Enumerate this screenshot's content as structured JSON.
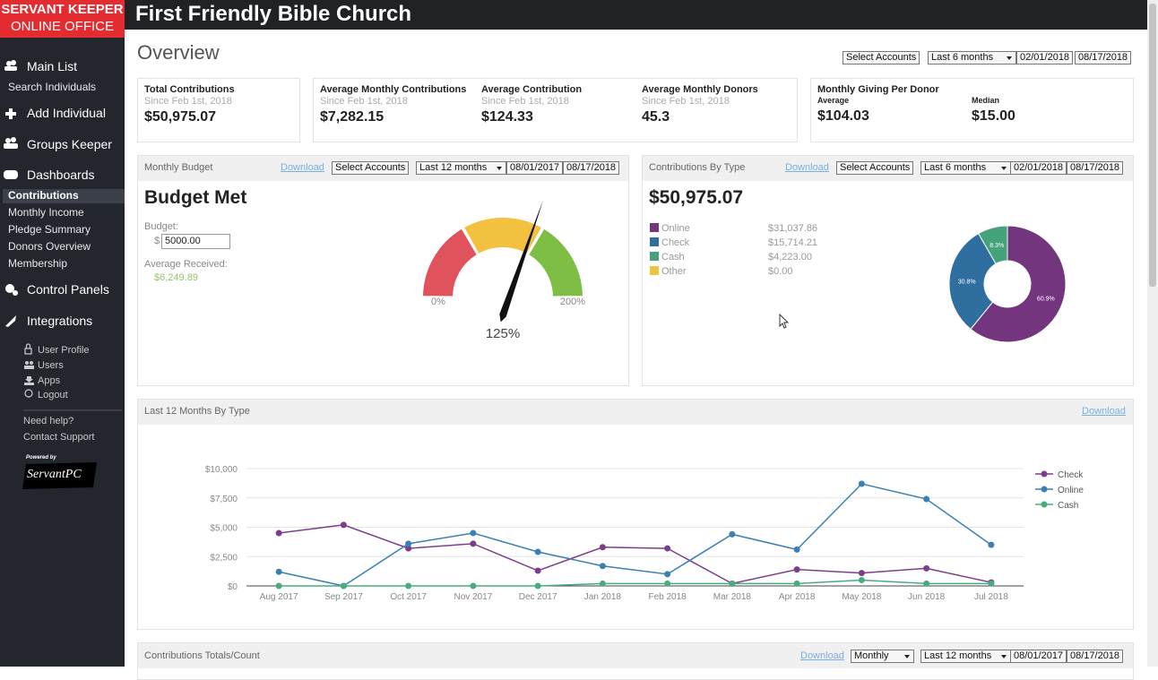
{
  "brand": {
    "line1": "SERVANT KEEPER",
    "line2": "ONLINE OFFICE"
  },
  "header": {
    "title": "First Friendly Bible Church"
  },
  "sidebar": {
    "main_list": "Main List",
    "search_individuals": "Search Individuals",
    "add_individual": "Add Individual",
    "groups_keeper": "Groups Keeper",
    "dashboards": "Dashboards",
    "dashboard_links": [
      "Contributions",
      "Monthly Income",
      "Pledge Summary",
      "Donors Overview",
      "Membership"
    ],
    "control_panels": "Control Panels",
    "integrations": "Integrations",
    "account_links": [
      "User Profile",
      "Users",
      "Apps",
      "Logout"
    ],
    "help": "Need help?",
    "contact": "Contact Support",
    "powered_by": "Powered by",
    "logo": "ServantPC"
  },
  "overview": {
    "title": "Overview",
    "select_accounts": "Select Accounts",
    "range": "Last 6 months",
    "start": "02/01/2018",
    "end": "08/17/2018"
  },
  "stats": [
    {
      "label": "Total Contributions",
      "sub": "Since Feb 1st, 2018",
      "value": "$50,975.07"
    },
    {
      "label": "Average Monthly Contributions",
      "sub": "Since Feb 1st, 2018",
      "value": "$7,282.15"
    },
    {
      "label": "Average Contribution",
      "sub": "Since Feb 1st, 2018",
      "value": "$124.33"
    },
    {
      "label": "Average Monthly Donors",
      "sub": "Since Feb 1st, 2018",
      "value": "45.3"
    }
  ],
  "per_donor": {
    "title": "Monthly Giving Per Donor",
    "average_label": "Average",
    "average": "$104.03",
    "median_label": "Median",
    "median": "$15.00"
  },
  "budget_panel": {
    "title": "Monthly Budget",
    "download": "Download",
    "select_accounts": "Select Accounts",
    "range": "Last 12 months",
    "start": "08/01/2017",
    "end": "08/17/2018",
    "status": "Budget Met",
    "budget_label": "Budget:",
    "currency": "$",
    "budget_input": "5000.00",
    "average_label": "Average Received:",
    "average": "$6,249.89",
    "gauge": {
      "type": "gauge",
      "min": {
        "value": 0,
        "label": "0%"
      },
      "max": {
        "value": 200,
        "label": "200%"
      },
      "value": 125,
      "value_label": "125%"
    }
  },
  "type_panel": {
    "title": "Contributions By Type",
    "download": "Download",
    "select_accounts": "Select Accounts",
    "range": "Last 6 months",
    "start": "02/01/2018",
    "end": "08/17/2018",
    "total": "$50,975.07",
    "chart": {
      "type": "donut",
      "categories": [
        "Online",
        "Check",
        "Cash",
        "Other"
      ],
      "colors": [
        "#74357f",
        "#2f6f9f",
        "#45a27b",
        "#f0c53c"
      ],
      "values": [
        31037.86,
        15714.21,
        4223.0,
        0
      ],
      "value_labels": [
        "$31,037.86",
        "$15,714.21",
        "$4,223.00",
        "$0.00"
      ],
      "percents": [
        60.9,
        30.8,
        8.3,
        null
      ],
      "percent_labels": [
        "60.9%",
        "30.8%",
        "8.3%",
        null
      ]
    }
  },
  "trend_panel": {
    "title": "Last 12 Months By Type",
    "download": "Download",
    "chart": {
      "type": "line",
      "categories": [
        "Aug 2017",
        "Sep 2017",
        "Oct 2017",
        "Nov 2017",
        "Dec 2017",
        "Jan 2018",
        "Feb 2018",
        "Mar 2018",
        "Apr 2018",
        "May 2018",
        "Jun 2018",
        "Jul 2018"
      ],
      "series": [
        {
          "name": "Check",
          "color": "#7b3d8c",
          "values": [
            4500,
            5200,
            3200,
            3600,
            1300,
            3300,
            3200,
            200,
            1400,
            1100,
            1500,
            300
          ]
        },
        {
          "name": "Online",
          "color": "#3a80b2",
          "values": [
            1200,
            0,
            3600,
            4500,
            2900,
            1700,
            1000,
            4400,
            3100,
            8700,
            7400,
            3500
          ]
        },
        {
          "name": "Cash",
          "color": "#4aab7f",
          "values": [
            0,
            0,
            0,
            0,
            0,
            200,
            200,
            200,
            200,
            500,
            200,
            200
          ]
        }
      ],
      "ylim": [
        0,
        10000
      ],
      "yticks": [
        {
          "value": 0,
          "label": "$0"
        },
        {
          "value": 2500,
          "label": "$2,500"
        },
        {
          "value": 5000,
          "label": "$5,000"
        },
        {
          "value": 7500,
          "label": "$7,500"
        },
        {
          "value": 10000,
          "label": "$10,000"
        }
      ],
      "grid": true,
      "legend": "top-right"
    }
  },
  "totals_panel": {
    "title": "Contributions Totals/Count",
    "download": "Download",
    "interval": "Monthly",
    "range": "Last 12 months",
    "start": "08/01/2017",
    "end": "08/17/2018"
  }
}
